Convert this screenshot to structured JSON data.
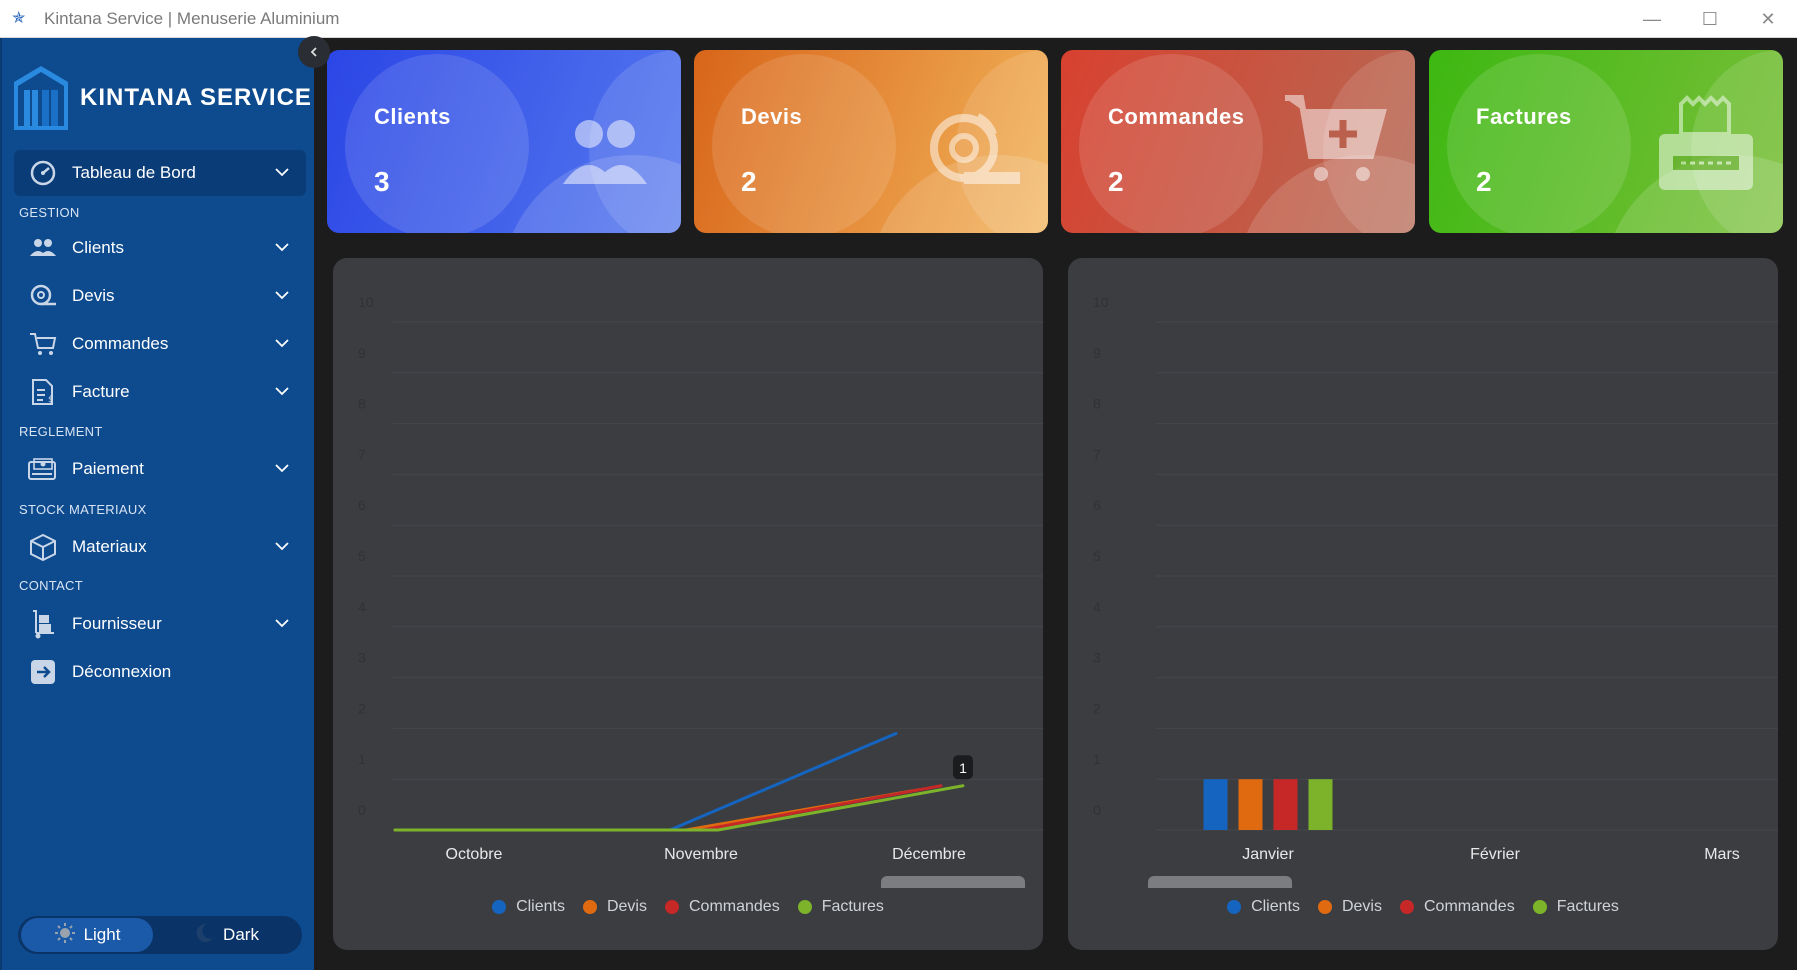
{
  "window": {
    "title": "Kintana Service | Menuserie Aluminium",
    "minimize": "—",
    "maximize": "☐",
    "close": "✕"
  },
  "sidebar": {
    "brand": "KINTANA SERVICE",
    "collapse_icon": "‹",
    "dashboard": "Tableau de Bord",
    "sections": {
      "gestion": "GESTION",
      "reglement": "REGLEMENT",
      "stock": "STOCK MATERIAUX",
      "contact": "CONTACT"
    },
    "items": {
      "clients": "Clients",
      "devis": "Devis",
      "commandes": "Commandes",
      "facture": "Facture",
      "paiement": "Paiement",
      "materiaux": "Materiaux",
      "fournisseur": "Fournisseur",
      "deconnexion": "Déconnexion"
    },
    "theme": {
      "light": "Light",
      "dark": "Dark"
    }
  },
  "cards": [
    {
      "title": "Clients",
      "count": "3",
      "color_from": "#2b46e6",
      "color_to": "#5578ee"
    },
    {
      "title": "Devis",
      "count": "2",
      "color_from": "#d8651a",
      "color_to": "#f2b45a"
    },
    {
      "title": "Commandes",
      "count": "2",
      "color_from": "#d8412f",
      "color_to": "#b56a55"
    },
    {
      "title": "Factures",
      "count": "2",
      "color_from": "#3db812",
      "color_to": "#7bbf3a"
    }
  ],
  "chart_data": [
    {
      "type": "line",
      "categories": [
        "Octobre",
        "Novembre",
        "Décembre"
      ],
      "ylim": [
        0,
        10
      ],
      "yticks": [
        "0",
        "1",
        "2",
        "3",
        "4",
        "5",
        "6",
        "7",
        "8",
        "9",
        "10"
      ],
      "series": [
        {
          "name": "Clients",
          "color": "#1565c0",
          "values": [
            0,
            0,
            2
          ]
        },
        {
          "name": "Devis",
          "color": "#e06a10",
          "values": [
            0,
            0,
            1
          ]
        },
        {
          "name": "Commandes",
          "color": "#c62828",
          "values": [
            0,
            0,
            1
          ]
        },
        {
          "name": "Factures",
          "color": "#7cb32a",
          "values": [
            0,
            0,
            1
          ]
        }
      ],
      "tooltip": "1"
    },
    {
      "type": "bar",
      "categories": [
        "Janvier",
        "Février",
        "Mars"
      ],
      "ylim": [
        0,
        10
      ],
      "yticks": [
        "0",
        "1",
        "2",
        "3",
        "4",
        "5",
        "6",
        "7",
        "8",
        "9",
        "10"
      ],
      "series": [
        {
          "name": "Clients",
          "color": "#1565c0",
          "values": [
            1,
            0,
            0
          ]
        },
        {
          "name": "Devis",
          "color": "#e06a10",
          "values": [
            1,
            0,
            0
          ]
        },
        {
          "name": "Commandes",
          "color": "#c62828",
          "values": [
            1,
            0,
            0
          ]
        },
        {
          "name": "Factures",
          "color": "#7cb32a",
          "values": [
            1,
            0,
            0
          ]
        }
      ]
    }
  ]
}
